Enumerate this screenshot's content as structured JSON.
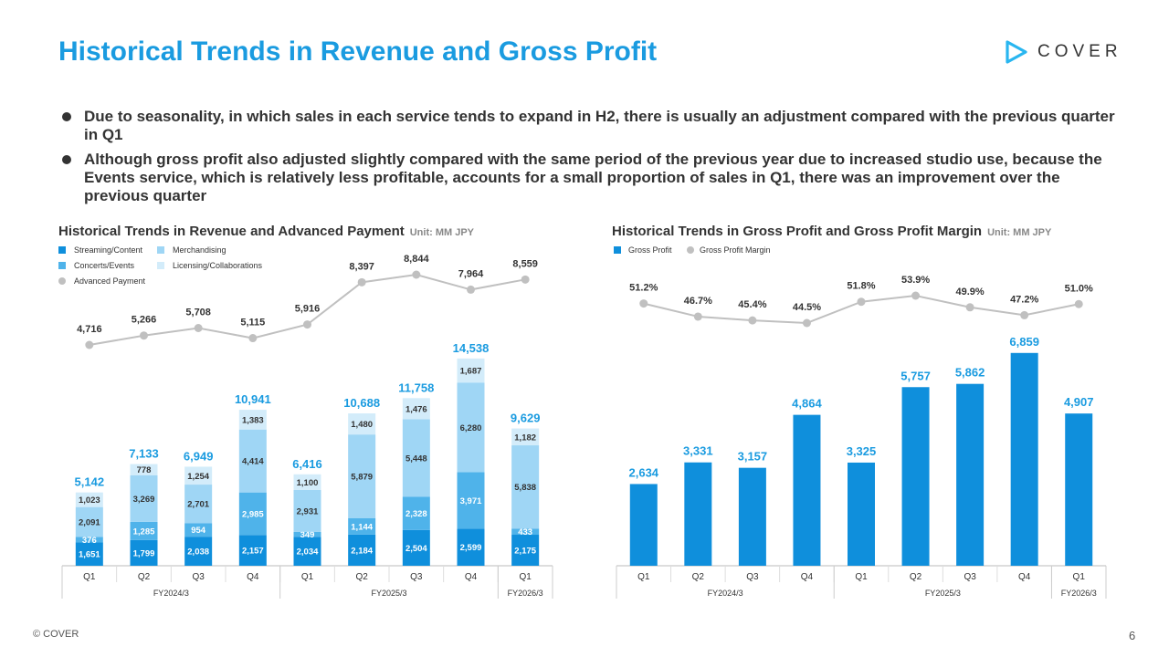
{
  "page": {
    "title": "Historical Trends in Revenue and Gross Profit",
    "logo_text": "COVER",
    "bullets": [
      "Due to seasonality, in which sales in each service tends to expand in H2, there is usually an adjustment compared with the previous quarter in Q1",
      "Although gross profit also adjusted slightly compared with the same period of the previous year due to increased studio use, because the Events service, which is relatively less profitable, accounts for a small proportion of sales in Q1, there was an improvement over the previous quarter"
    ],
    "copyright": "© COVER",
    "page_number": "6"
  },
  "colors": {
    "title_blue": "#1a9be0",
    "streaming": "#0f8fdc",
    "concerts": "#4fb3ea",
    "merch": "#9fd6f5",
    "licensing": "#d3ecfa",
    "advanced_payment": "#c0c0c0",
    "gross_profit": "#0f8fdc",
    "margin": "#c0c0c0"
  },
  "chart_data": [
    {
      "type": "bar",
      "stacked": true,
      "title": "Historical Trends in Revenue and Advanced Payment",
      "unit": "Unit: MM JPY",
      "categories": [
        "Q1",
        "Q2",
        "Q3",
        "Q4",
        "Q1",
        "Q2",
        "Q3",
        "Q4",
        "Q1"
      ],
      "groups": [
        {
          "label": "FY2024/3",
          "count": 4
        },
        {
          "label": "FY2025/3",
          "count": 4
        },
        {
          "label": "FY2026/3",
          "count": 1
        }
      ],
      "series": [
        {
          "name": "Streaming/Content",
          "values": [
            1651,
            1799,
            2038,
            2157,
            2034,
            2184,
            2504,
            2599,
            2175
          ]
        },
        {
          "name": "Concerts/Events",
          "values": [
            376,
            1285,
            954,
            2985,
            349,
            1144,
            2328,
            3971,
            433
          ]
        },
        {
          "name": "Merchandising",
          "values": [
            2091,
            3269,
            2701,
            4414,
            2931,
            5879,
            5448,
            6280,
            5838
          ]
        },
        {
          "name": "Licensing/Collaborations",
          "values": [
            1023,
            778,
            1254,
            1383,
            1100,
            1480,
            1476,
            1687,
            1182
          ]
        }
      ],
      "totals": [
        "5,142",
        "7,133",
        "6,949",
        "10,941",
        "6,416",
        "10,688",
        "11,758",
        "14,538",
        "9,629"
      ],
      "line_series": {
        "name": "Advanced Payment",
        "values": [
          4716,
          5266,
          5708,
          5115,
          5916,
          8397,
          8844,
          7964,
          8559
        ]
      },
      "legend_order": [
        "Streaming/Content",
        "Merchandising",
        "Concerts/Events",
        "Licensing/Collaborations",
        "Advanced Payment"
      ],
      "legend_position": "top-left"
    },
    {
      "type": "bar",
      "title": "Historical Trends in Gross Profit  and Gross Profit Margin",
      "unit": "Unit: MM JPY",
      "categories": [
        "Q1",
        "Q2",
        "Q3",
        "Q4",
        "Q1",
        "Q2",
        "Q3",
        "Q4",
        "Q1"
      ],
      "groups": [
        {
          "label": "FY2024/3",
          "count": 4
        },
        {
          "label": "FY2025/3",
          "count": 4
        },
        {
          "label": "FY2026/3",
          "count": 1
        }
      ],
      "series": [
        {
          "name": "Gross Profit",
          "values": [
            2634,
            3331,
            3157,
            4864,
            3325,
            5757,
            5862,
            6859,
            4907
          ]
        }
      ],
      "line_series": {
        "name": "Gross Profit Margin",
        "values": [
          51.2,
          46.7,
          45.4,
          44.5,
          51.8,
          53.9,
          49.9,
          47.2,
          51.0
        ],
        "labels": [
          "51.2%",
          "46.7%",
          "45.4%",
          "44.5%",
          "51.8%",
          "53.9%",
          "49.9%",
          "47.2%",
          "51.0%"
        ]
      },
      "legend_order": [
        "Gross Profit",
        "Gross Profit Margin"
      ],
      "legend_position": "top-left"
    }
  ]
}
